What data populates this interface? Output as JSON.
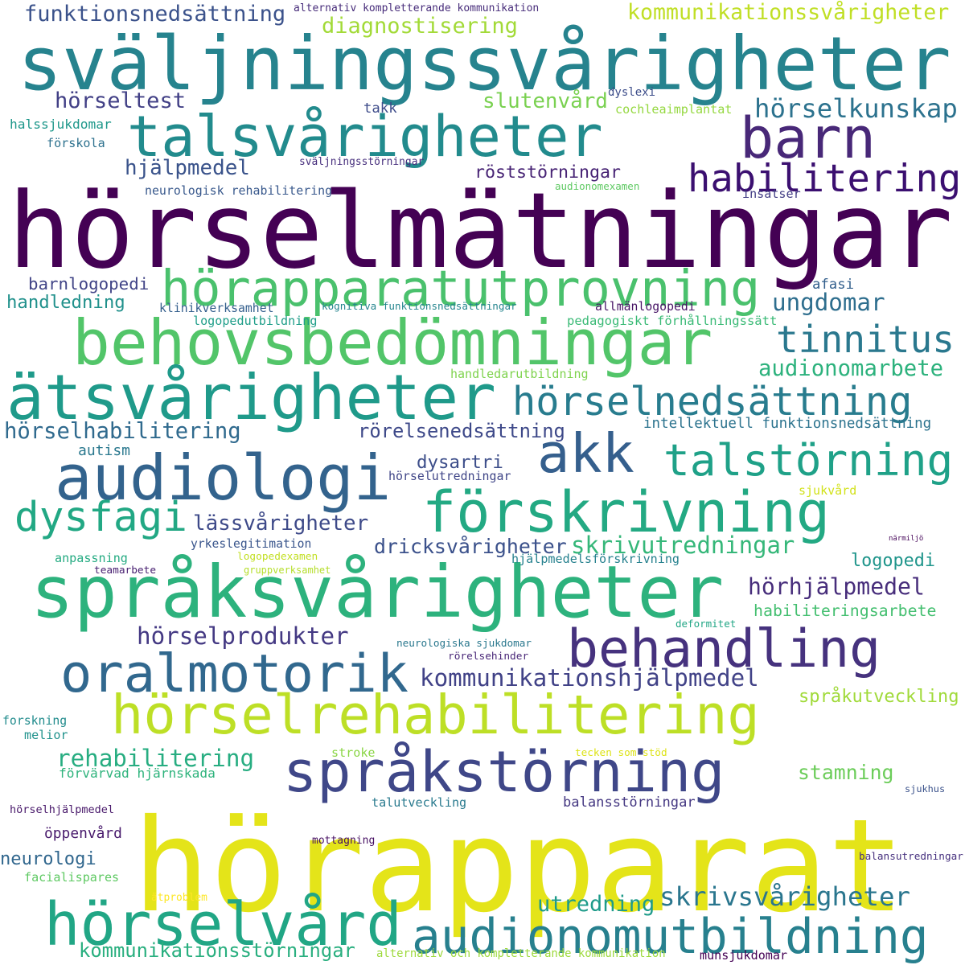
{
  "words": [
    {
      "text": "hörapparat",
      "color": "#e4e419"
    },
    {
      "text": "hörselmätningar",
      "color": "#440154"
    },
    {
      "text": "sväljningssvårigheter",
      "color": "#26838e"
    },
    {
      "text": "språksvårigheter",
      "color": "#2db27d"
    },
    {
      "text": "behovsbedömningar",
      "color": "#52c569"
    },
    {
      "text": "ätsvårigheter",
      "color": "#1f9a8a"
    },
    {
      "text": "talsvårigheter",
      "color": "#228b8d"
    },
    {
      "text": "hörselrehabilitering",
      "color": "#bddf26"
    },
    {
      "text": "audiologi",
      "color": "#33638d"
    },
    {
      "text": "förskrivning",
      "color": "#23a983"
    },
    {
      "text": "språkstörning",
      "color": "#3f4788"
    },
    {
      "text": "hörselvård",
      "color": "#21a685"
    },
    {
      "text": "audionomutbildning",
      "color": "#27808e"
    },
    {
      "text": "hörapparatutprovning",
      "color": "#4ac16d"
    },
    {
      "text": "oralmotorik",
      "color": "#31688e"
    },
    {
      "text": "behandling",
      "color": "#46327e"
    },
    {
      "text": "barn",
      "color": "#482878"
    },
    {
      "text": "akk",
      "color": "#355f8d"
    },
    {
      "text": "talstörning",
      "color": "#1fa188"
    },
    {
      "text": "hörselnedsättning",
      "color": "#287c8e"
    },
    {
      "text": "dysfagi",
      "color": "#22a884"
    },
    {
      "text": "habilitering",
      "color": "#3b0f70"
    },
    {
      "text": "tinnitus",
      "color": "#2a788e"
    },
    {
      "text": "kommunikationssvårigheter",
      "color": "#c0df25"
    },
    {
      "text": "diagnostisering",
      "color": "#a2da37"
    },
    {
      "text": "funktionsnedsättning",
      "color": "#3b528b"
    },
    {
      "text": "alternativ kompletterande kommunikation",
      "color": "#472c7a"
    },
    {
      "text": "hörseltest",
      "color": "#424086"
    },
    {
      "text": "slutenvård",
      "color": "#7ad151"
    },
    {
      "text": "hörselkunskap",
      "color": "#2c728e"
    },
    {
      "text": "takk",
      "color": "#3e4c8a"
    },
    {
      "text": "dyslexi",
      "color": "#3d4d8a"
    },
    {
      "text": "cochleaimplantat",
      "color": "#95d840"
    },
    {
      "text": "halssjukdomar",
      "color": "#1f988b"
    },
    {
      "text": "förskola",
      "color": "#2d718e"
    },
    {
      "text": "hjälpmedel",
      "color": "#3a538b"
    },
    {
      "text": "sväljningsstörningar",
      "color": "#472f7d"
    },
    {
      "text": "röststörningar",
      "color": "#482475"
    },
    {
      "text": "neurologisk rehabilitering",
      "color": "#38588c"
    },
    {
      "text": "audionomexamen",
      "color": "#5ec962"
    },
    {
      "text": "insatser",
      "color": "#433e85"
    },
    {
      "text": "barnlogopedi",
      "color": "#414487"
    },
    {
      "text": "handledning",
      "color": "#21918c"
    },
    {
      "text": "afasi",
      "color": "#34608d"
    },
    {
      "text": "ungdomar",
      "color": "#2e6e8e"
    },
    {
      "text": "klinikverksamhet",
      "color": "#345f8d"
    },
    {
      "text": "kognitiva funktionsnedsättningar",
      "color": "#25858e"
    },
    {
      "text": "allmänlogopedi",
      "color": "#471365"
    },
    {
      "text": "logopedutbildning",
      "color": "#1f9e89"
    },
    {
      "text": "pedagogiskt förhållningssätt",
      "color": "#3aba76"
    },
    {
      "text": "audionomarbete",
      "color": "#2db27d"
    },
    {
      "text": "handledarutbildning",
      "color": "#7fd34e"
    },
    {
      "text": "hörselhabilitering",
      "color": "#306a8e"
    },
    {
      "text": "rörelsenedsättning",
      "color": "#3e4989"
    },
    {
      "text": "intellektuell funktionsnedsättning",
      "color": "#2c738e"
    },
    {
      "text": "autism",
      "color": "#2a788e"
    },
    {
      "text": "dysartri",
      "color": "#3d4e8a"
    },
    {
      "text": "hörselutredningar",
      "color": "#404688"
    },
    {
      "text": "sjukvård",
      "color": "#d2e21b"
    },
    {
      "text": "lässvårigheter",
      "color": "#3e4a89"
    },
    {
      "text": "yrkeslegitimation",
      "color": "#39558c"
    },
    {
      "text": "dricksvårigheter",
      "color": "#3b518b"
    },
    {
      "text": "skrivutredningar",
      "color": "#35b779"
    },
    {
      "text": "närmiljö",
      "color": "#450559"
    },
    {
      "text": "anpassning",
      "color": "#25ab82"
    },
    {
      "text": "logopedexamen",
      "color": "#c2df23"
    },
    {
      "text": "teamarbete",
      "color": "#482071"
    },
    {
      "text": "gruppverksamhet",
      "color": "#b5de2b"
    },
    {
      "text": "hjälpmedelsförskrivning",
      "color": "#26818e"
    },
    {
      "text": "logopedi",
      "color": "#1f958b"
    },
    {
      "text": "hörhjälpmedel",
      "color": "#472d7b"
    },
    {
      "text": "habiliteringsarbete",
      "color": "#44bf70"
    },
    {
      "text": "hörselprodukter",
      "color": "#443983"
    },
    {
      "text": "deformitet",
      "color": "#21a685"
    },
    {
      "text": "neurologiska sjukdomar",
      "color": "#2a788e"
    },
    {
      "text": "rörelsehinder",
      "color": "#482677"
    },
    {
      "text": "kommunikationshjälpmedel",
      "color": "#414287"
    },
    {
      "text": "språkutveckling",
      "color": "#a0da39"
    },
    {
      "text": "forskning",
      "color": "#228c8d"
    },
    {
      "text": "melior",
      "color": "#20928c"
    },
    {
      "text": "rehabilitering",
      "color": "#27ad81"
    },
    {
      "text": "stroke",
      "color": "#8bd646"
    },
    {
      "text": "tecken som stöd",
      "color": "#dde318"
    },
    {
      "text": "förvärvad hjärnskada",
      "color": "#2eb37c"
    },
    {
      "text": "stamning",
      "color": "#6ccd5a"
    },
    {
      "text": "sjukhus",
      "color": "#3b528b"
    },
    {
      "text": "hörselhjälpmedel",
      "color": "#48186a"
    },
    {
      "text": "talutveckling",
      "color": "#297a8e"
    },
    {
      "text": "balansstörningar",
      "color": "#453882"
    },
    {
      "text": "öppenvård",
      "color": "#481a6c"
    },
    {
      "text": "neurologi",
      "color": "#31678e"
    },
    {
      "text": "mottagning",
      "color": "#471063"
    },
    {
      "text": "balansutredningar",
      "color": "#46307e"
    },
    {
      "text": "facialispares",
      "color": "#5ec962"
    },
    {
      "text": "skrivsvårigheter",
      "color": "#2a768e"
    },
    {
      "text": "utredning",
      "color": "#1e9b8a"
    },
    {
      "text": "ätproblem",
      "color": "#fde725"
    },
    {
      "text": "kommunikationsstörningar",
      "color": "#29af7f"
    },
    {
      "text": "alternativ och kompletterande kommunikation",
      "color": "#9dd93b"
    },
    {
      "text": "munsjukdomar",
      "color": "#440154"
    }
  ]
}
